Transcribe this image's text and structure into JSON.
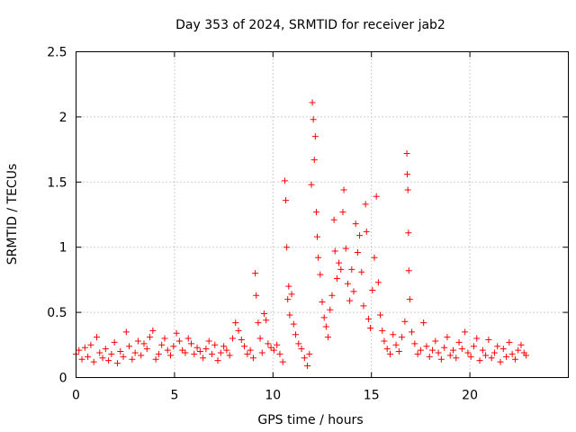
{
  "chart_data": {
    "type": "scatter",
    "title": "Day 353 of 2024, SRMTID for receiver jab2",
    "xlabel": "GPS time / hours",
    "ylabel": "SRMTID / TECUs",
    "xlim": [
      0,
      25
    ],
    "ylim": [
      0,
      2.5
    ],
    "xticks": [
      0,
      5,
      10,
      15,
      20
    ],
    "xtick_labels": [
      "0",
      "5",
      "10",
      "15",
      "20"
    ],
    "yticks": [
      0,
      0.5,
      1,
      1.5,
      2,
      2.5
    ],
    "ytick_labels": [
      "0",
      "0.5",
      "1",
      "1.5",
      "2",
      "2.5"
    ],
    "grid": true,
    "marker": "+",
    "series": [
      {
        "name": "jab2",
        "color": "#ff0000",
        "points": [
          [
            0.0,
            0.18
          ],
          [
            0.15,
            0.21
          ],
          [
            0.3,
            0.14
          ],
          [
            0.45,
            0.23
          ],
          [
            0.6,
            0.16
          ],
          [
            0.75,
            0.25
          ],
          [
            0.9,
            0.12
          ],
          [
            1.05,
            0.31
          ],
          [
            1.2,
            0.19
          ],
          [
            1.35,
            0.15
          ],
          [
            1.5,
            0.22
          ],
          [
            1.65,
            0.13
          ],
          [
            1.8,
            0.18
          ],
          [
            1.95,
            0.27
          ],
          [
            2.1,
            0.11
          ],
          [
            2.25,
            0.2
          ],
          [
            2.4,
            0.16
          ],
          [
            2.55,
            0.35
          ],
          [
            2.7,
            0.24
          ],
          [
            2.85,
            0.14
          ],
          [
            3.0,
            0.19
          ],
          [
            3.15,
            0.28
          ],
          [
            3.3,
            0.17
          ],
          [
            3.45,
            0.26
          ],
          [
            3.6,
            0.22
          ],
          [
            3.75,
            0.31
          ],
          [
            3.9,
            0.36
          ],
          [
            4.05,
            0.14
          ],
          [
            4.2,
            0.18
          ],
          [
            4.35,
            0.25
          ],
          [
            4.5,
            0.3
          ],
          [
            4.65,
            0.21
          ],
          [
            4.8,
            0.17
          ],
          [
            4.95,
            0.24
          ],
          [
            5.1,
            0.34
          ],
          [
            5.25,
            0.28
          ],
          [
            5.4,
            0.21
          ],
          [
            5.55,
            0.19
          ],
          [
            5.7,
            0.3
          ],
          [
            5.85,
            0.26
          ],
          [
            6.0,
            0.18
          ],
          [
            6.15,
            0.23
          ],
          [
            6.3,
            0.2
          ],
          [
            6.45,
            0.15
          ],
          [
            6.6,
            0.22
          ],
          [
            6.75,
            0.28
          ],
          [
            6.9,
            0.18
          ],
          [
            7.05,
            0.25
          ],
          [
            7.2,
            0.13
          ],
          [
            7.35,
            0.19
          ],
          [
            7.5,
            0.24
          ],
          [
            7.65,
            0.21
          ],
          [
            7.8,
            0.17
          ],
          [
            7.95,
            0.3
          ],
          [
            8.1,
            0.42
          ],
          [
            8.25,
            0.36
          ],
          [
            8.4,
            0.29
          ],
          [
            8.55,
            0.24
          ],
          [
            8.7,
            0.18
          ],
          [
            8.85,
            0.21
          ],
          [
            9.0,
            0.15
          ],
          [
            9.1,
            0.8
          ],
          [
            9.15,
            0.63
          ],
          [
            9.25,
            0.42
          ],
          [
            9.35,
            0.3
          ],
          [
            9.45,
            0.19
          ],
          [
            9.55,
            0.49
          ],
          [
            9.65,
            0.44
          ],
          [
            9.75,
            0.26
          ],
          [
            9.9,
            0.23
          ],
          [
            10.05,
            0.21
          ],
          [
            10.2,
            0.25
          ],
          [
            10.35,
            0.18
          ],
          [
            10.5,
            0.12
          ],
          [
            10.6,
            1.51
          ],
          [
            10.65,
            1.36
          ],
          [
            10.7,
            1.0
          ],
          [
            10.75,
            0.6
          ],
          [
            10.8,
            0.7
          ],
          [
            10.85,
            0.48
          ],
          [
            10.95,
            0.64
          ],
          [
            11.05,
            0.41
          ],
          [
            11.15,
            0.33
          ],
          [
            11.3,
            0.26
          ],
          [
            11.45,
            0.22
          ],
          [
            11.6,
            0.15
          ],
          [
            11.75,
            0.09
          ],
          [
            11.85,
            0.18
          ],
          [
            11.95,
            1.48
          ],
          [
            12.0,
            2.11
          ],
          [
            12.05,
            1.98
          ],
          [
            12.1,
            1.67
          ],
          [
            12.15,
            1.85
          ],
          [
            12.2,
            1.27
          ],
          [
            12.25,
            1.08
          ],
          [
            12.3,
            0.92
          ],
          [
            12.4,
            0.79
          ],
          [
            12.5,
            0.58
          ],
          [
            12.6,
            0.46
          ],
          [
            12.7,
            0.39
          ],
          [
            12.8,
            0.31
          ],
          [
            12.9,
            0.52
          ],
          [
            13.0,
            0.63
          ],
          [
            13.1,
            1.21
          ],
          [
            13.15,
            0.97
          ],
          [
            13.25,
            0.76
          ],
          [
            13.35,
            0.88
          ],
          [
            13.45,
            0.83
          ],
          [
            13.55,
            1.27
          ],
          [
            13.6,
            1.44
          ],
          [
            13.7,
            0.99
          ],
          [
            13.8,
            0.72
          ],
          [
            13.9,
            0.59
          ],
          [
            14.0,
            0.83
          ],
          [
            14.1,
            0.66
          ],
          [
            14.2,
            1.18
          ],
          [
            14.3,
            0.96
          ],
          [
            14.4,
            1.09
          ],
          [
            14.5,
            0.81
          ],
          [
            14.6,
            0.55
          ],
          [
            14.7,
            1.33
          ],
          [
            14.75,
            1.12
          ],
          [
            14.85,
            0.45
          ],
          [
            14.95,
            0.38
          ],
          [
            15.05,
            0.67
          ],
          [
            15.15,
            0.92
          ],
          [
            15.25,
            1.39
          ],
          [
            15.35,
            0.73
          ],
          [
            15.45,
            0.48
          ],
          [
            15.55,
            0.36
          ],
          [
            15.65,
            0.28
          ],
          [
            15.8,
            0.22
          ],
          [
            15.95,
            0.18
          ],
          [
            16.1,
            0.33
          ],
          [
            16.25,
            0.25
          ],
          [
            16.4,
            0.2
          ],
          [
            16.55,
            0.31
          ],
          [
            16.7,
            0.43
          ],
          [
            16.8,
            1.72
          ],
          [
            16.82,
            1.56
          ],
          [
            16.85,
            1.44
          ],
          [
            16.88,
            1.11
          ],
          [
            16.9,
            0.82
          ],
          [
            16.95,
            0.6
          ],
          [
            17.05,
            0.35
          ],
          [
            17.2,
            0.26
          ],
          [
            17.35,
            0.18
          ],
          [
            17.5,
            0.21
          ],
          [
            17.65,
            0.42
          ],
          [
            17.8,
            0.24
          ],
          [
            17.95,
            0.16
          ],
          [
            18.1,
            0.21
          ],
          [
            18.25,
            0.28
          ],
          [
            18.4,
            0.19
          ],
          [
            18.55,
            0.14
          ],
          [
            18.7,
            0.23
          ],
          [
            18.85,
            0.31
          ],
          [
            19.0,
            0.17
          ],
          [
            19.15,
            0.21
          ],
          [
            19.3,
            0.15
          ],
          [
            19.45,
            0.27
          ],
          [
            19.6,
            0.22
          ],
          [
            19.75,
            0.35
          ],
          [
            19.9,
            0.19
          ],
          [
            20.05,
            0.16
          ],
          [
            20.2,
            0.24
          ],
          [
            20.35,
            0.3
          ],
          [
            20.5,
            0.13
          ],
          [
            20.65,
            0.21
          ],
          [
            20.8,
            0.17
          ],
          [
            20.95,
            0.29
          ],
          [
            21.1,
            0.15
          ],
          [
            21.25,
            0.19
          ],
          [
            21.4,
            0.24
          ],
          [
            21.55,
            0.12
          ],
          [
            21.7,
            0.22
          ],
          [
            21.85,
            0.16
          ],
          [
            22.0,
            0.27
          ],
          [
            22.15,
            0.18
          ],
          [
            22.3,
            0.14
          ],
          [
            22.45,
            0.21
          ],
          [
            22.6,
            0.25
          ],
          [
            22.75,
            0.19
          ],
          [
            22.85,
            0.17
          ]
        ]
      }
    ]
  }
}
